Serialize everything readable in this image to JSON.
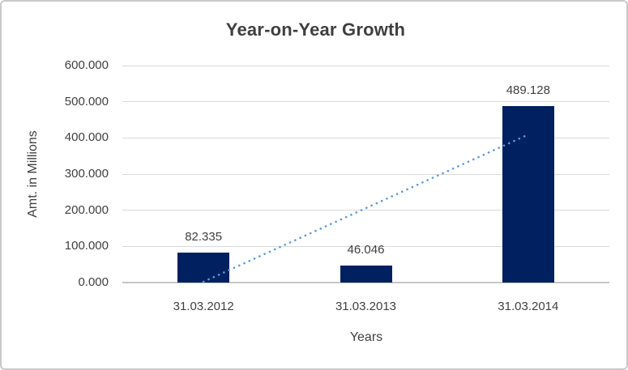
{
  "chart": {
    "title": "Year-on-Year Growth",
    "x_axis_title": "Years",
    "y_axis_title": "Amt. in Millions"
  },
  "chart_data": {
    "type": "bar",
    "title": "Year-on-Year Growth",
    "xlabel": "Years",
    "ylabel": "Amt. in Millions",
    "categories": [
      "31.03.2012",
      "31.03.2013",
      "31.03.2014"
    ],
    "values": [
      82.335,
      46.046,
      489.128
    ],
    "value_labels": [
      "82.335",
      "46.046",
      "489.128"
    ],
    "ylim": [
      0,
      600
    ],
    "y_tick_step": 100,
    "y_tick_labels": [
      "0.000",
      "100.000",
      "200.000",
      "300.000",
      "400.000",
      "500.000",
      "600.000"
    ],
    "grid": "horizontal",
    "legend": "none",
    "bar_color": "#002060",
    "trendline": {
      "type": "linear",
      "style": "dotted",
      "color": "#5B9BD5",
      "start_value": 2.4,
      "end_value": 409.2
    },
    "colors": {
      "background": "#ffffff",
      "frame_border": "#c9c9c9",
      "gridline": "#d9d9d9",
      "axis_line": "#c6c6c6",
      "text": "#404040"
    }
  }
}
